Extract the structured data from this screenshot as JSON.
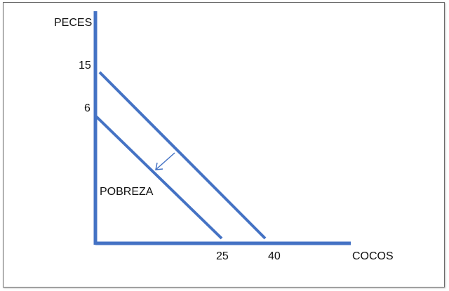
{
  "chart_data": {
    "type": "line",
    "title": "",
    "ylabel": "PECES",
    "xlabel": "COCOS",
    "y_ticks": [
      "15",
      "6"
    ],
    "x_ticks": [
      "25",
      "40"
    ],
    "series": [
      {
        "x": [
          0,
          40
        ],
        "y": [
          15,
          0
        ]
      },
      {
        "x": [
          0,
          25
        ],
        "y": [
          6,
          0
        ]
      }
    ],
    "annotations": [
      {
        "text": "POBREZA"
      },
      {
        "type": "arrow",
        "direction": "down-left"
      }
    ],
    "colors": {
      "lines": "#4472c4",
      "text": "#111111"
    }
  }
}
